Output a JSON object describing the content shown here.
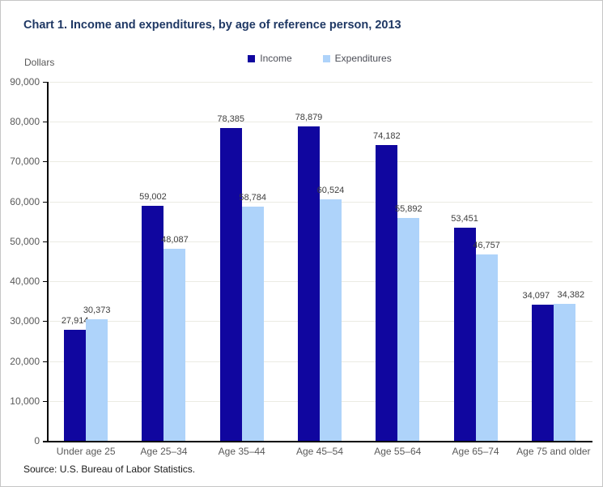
{
  "chart_data": {
    "type": "bar",
    "title": "Chart 1. Income and expenditures, by age of reference person, 2013",
    "ylabel": "Dollars",
    "xlabel": "",
    "categories": [
      "Under age 25",
      "Age 25–34",
      "Age 35–44",
      "Age 45–54",
      "Age 55–64",
      "Age 65–74",
      "Age 75 and older"
    ],
    "series": [
      {
        "name": "Income",
        "color": "#10069f",
        "values": [
          27914,
          59002,
          78385,
          78879,
          74182,
          53451,
          34097
        ],
        "labels": [
          "27,914",
          "59,002",
          "78,385",
          "78,879",
          "74,182",
          "53,451",
          "34,097"
        ]
      },
      {
        "name": "Expenditures",
        "color": "#aed3fa",
        "values": [
          30373,
          48087,
          58784,
          60524,
          55892,
          46757,
          34382
        ],
        "labels": [
          "30,373",
          "48,087",
          "58,784",
          "60,524",
          "55,892",
          "46,757",
          "34,382"
        ]
      }
    ],
    "ylim": [
      0,
      90000
    ],
    "ytick_step": 10000,
    "ytick_labels": [
      "0",
      "10,000",
      "20,000",
      "30,000",
      "40,000",
      "50,000",
      "60,000",
      "70,000",
      "80,000",
      "90,000"
    ],
    "grid": true,
    "legend_position": "top-center",
    "source": "Source: U.S. Bureau of Labor Statistics."
  },
  "colors": {
    "title_text": "#1f3864",
    "axis_text": "#595959",
    "data_label_text": "#3d3d3d",
    "legend_text": "#4c4e57",
    "gridline": "#ebebe3",
    "axis_line": "#000000",
    "frame_border": "#c6c6c6",
    "background": "#ffffff"
  }
}
